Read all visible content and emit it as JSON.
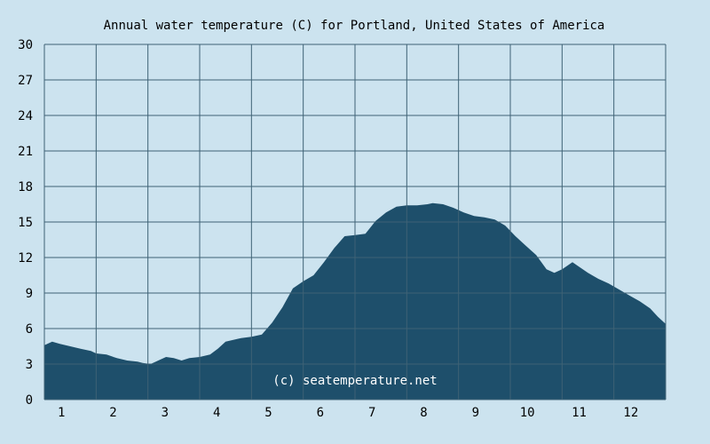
{
  "chart_data": {
    "type": "area",
    "title": "Annual water temperature (C) for Portland, United States of America",
    "watermark": "(c) seatemperature.net",
    "xlabel": "",
    "ylabel": "",
    "x_ticks": [
      "1",
      "2",
      "3",
      "4",
      "5",
      "6",
      "7",
      "8",
      "9",
      "10",
      "11",
      "12"
    ],
    "y_ticks": [
      "0",
      "3",
      "6",
      "9",
      "12",
      "15",
      "18",
      "21",
      "24",
      "27",
      "30"
    ],
    "xlim": [
      0.5,
      12.5
    ],
    "ylim": [
      0,
      30
    ],
    "grid": true,
    "colors": {
      "background": "#cce3ef",
      "plot_background": "#cce3ef",
      "fill": "#1e4f6b",
      "grid": "#3e6275"
    },
    "series": [
      {
        "x": [
          0.5,
          0.65,
          0.8,
          1.0,
          1.2,
          1.4,
          1.5,
          1.7,
          1.9,
          2.1,
          2.3,
          2.4,
          2.55,
          2.7,
          2.85,
          3.0,
          3.15,
          3.3,
          3.5,
          3.7,
          3.85,
          4.0,
          4.3,
          4.5,
          4.7,
          4.9,
          5.1,
          5.3,
          5.5,
          5.7,
          5.9,
          6.1,
          6.3,
          6.5,
          6.7,
          6.9,
          7.1,
          7.3,
          7.5,
          7.7,
          7.9,
          8.0,
          8.2,
          8.4,
          8.6,
          8.8,
          9.0,
          9.2,
          9.4,
          9.6,
          9.8,
          10.0,
          10.2,
          10.35,
          10.5,
          10.6,
          10.7,
          10.8,
          11.0,
          11.2,
          11.4,
          11.6,
          11.8,
          12.0,
          12.2,
          12.35,
          12.5
        ],
        "values": [
          4.6,
          4.9,
          4.7,
          4.5,
          4.3,
          4.1,
          3.9,
          3.8,
          3.5,
          3.3,
          3.2,
          3.1,
          3.0,
          3.3,
          3.6,
          3.5,
          3.3,
          3.5,
          3.6,
          3.8,
          4.3,
          4.9,
          5.2,
          5.3,
          5.5,
          6.5,
          7.8,
          9.4,
          10.0,
          10.5,
          11.6,
          12.8,
          13.8,
          13.9,
          14.0,
          15.1,
          15.8,
          16.3,
          16.4,
          16.4,
          16.5,
          16.6,
          16.5,
          16.2,
          15.8,
          15.5,
          15.4,
          15.2,
          14.7,
          13.8,
          13.0,
          12.2,
          11.0,
          10.7,
          11.0,
          11.3,
          11.6,
          11.3,
          10.7,
          10.2,
          9.8,
          9.3,
          8.8,
          8.3,
          7.7,
          7.0,
          6.4
        ]
      }
    ]
  }
}
